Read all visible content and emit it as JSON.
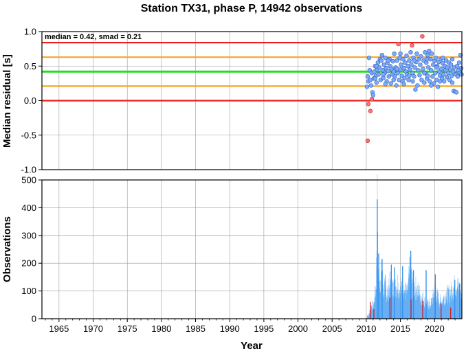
{
  "chart_data": [
    {
      "type": "scatter",
      "title": "Station TX31, phase P, 14942 observations",
      "ylabel": "Median residual [s]",
      "xlim": [
        1962.5,
        2024.0
      ],
      "ylim": [
        -1.0,
        1.0
      ],
      "yticks": [
        "1.0",
        "0.5",
        "0.0",
        "-0.5",
        "-1.0"
      ],
      "ytick_values": [
        1.0,
        0.5,
        0.0,
        -0.5,
        -1.0
      ],
      "grid": true,
      "annotation": "median = 0.42, smad = 0.21",
      "reference_lines": [
        {
          "y": 0.84,
          "color": "#ee1c1c"
        },
        {
          "y": 0.63,
          "color": "#f5a623"
        },
        {
          "y": 0.42,
          "color": "#22dd22"
        },
        {
          "y": 0.21,
          "color": "#f5a623"
        },
        {
          "y": 0.0,
          "color": "#ee1c1c"
        }
      ],
      "inlier_color": "#78aaff",
      "outlier_color": "#ff7070",
      "points": [
        [
          2010.2,
          -0.58,
          1
        ],
        [
          2010.3,
          -0.05,
          1
        ],
        [
          2010.6,
          -0.15,
          1
        ],
        [
          2010.8,
          0.02,
          1
        ],
        [
          2014.7,
          0.82,
          1
        ],
        [
          2016.7,
          0.8,
          1
        ],
        [
          2018.2,
          0.93,
          1
        ],
        [
          2010.1,
          0.2,
          0
        ],
        [
          2010.2,
          0.35,
          0
        ],
        [
          2010.3,
          0.28,
          0
        ],
        [
          2010.4,
          0.62,
          0
        ],
        [
          2010.5,
          0.44,
          0
        ],
        [
          2010.6,
          0.3,
          0
        ],
        [
          2010.7,
          0.22,
          0
        ],
        [
          2010.8,
          0.4,
          0
        ],
        [
          2010.9,
          0.12,
          0
        ],
        [
          2011.0,
          0.08,
          0
        ],
        [
          2011.1,
          0.32,
          0
        ],
        [
          2011.2,
          0.42,
          0
        ],
        [
          2011.3,
          0.5,
          0
        ],
        [
          2011.4,
          0.36,
          0
        ],
        [
          2011.5,
          0.26,
          0
        ],
        [
          2011.6,
          0.45,
          0
        ],
        [
          2011.7,
          0.55,
          0
        ],
        [
          2011.8,
          0.38,
          0
        ],
        [
          2011.9,
          0.48,
          0
        ],
        [
          2012.0,
          0.6,
          0
        ],
        [
          2012.1,
          0.3,
          0
        ],
        [
          2012.2,
          0.58,
          0
        ],
        [
          2012.3,
          0.66,
          0
        ],
        [
          2012.4,
          0.44,
          0
        ],
        [
          2012.5,
          0.33,
          0
        ],
        [
          2012.6,
          0.52,
          0
        ],
        [
          2012.7,
          0.4,
          0
        ],
        [
          2012.8,
          0.62,
          0
        ],
        [
          2012.9,
          0.47,
          0
        ],
        [
          2013.0,
          0.28,
          0
        ],
        [
          2013.1,
          0.55,
          0
        ],
        [
          2013.2,
          0.43,
          0
        ],
        [
          2013.3,
          0.35,
          0
        ],
        [
          2013.4,
          0.6,
          0
        ],
        [
          2013.5,
          0.5,
          0
        ],
        [
          2013.6,
          0.25,
          0
        ],
        [
          2013.7,
          0.46,
          0
        ],
        [
          2013.8,
          0.38,
          0
        ],
        [
          2013.9,
          0.57,
          0
        ],
        [
          2014.0,
          0.42,
          0
        ],
        [
          2014.1,
          0.68,
          0
        ],
        [
          2014.2,
          0.35,
          0
        ],
        [
          2014.3,
          0.48,
          0
        ],
        [
          2014.4,
          0.22,
          0
        ],
        [
          2014.5,
          0.58,
          0
        ],
        [
          2014.6,
          0.4,
          0
        ],
        [
          2014.8,
          0.3,
          0
        ],
        [
          2014.9,
          0.62,
          0
        ],
        [
          2015.0,
          0.45,
          0
        ],
        [
          2015.1,
          0.52,
          0
        ],
        [
          2015.2,
          0.36,
          0
        ],
        [
          2015.3,
          0.28,
          0
        ],
        [
          2015.4,
          0.6,
          0
        ],
        [
          2015.5,
          0.47,
          0
        ],
        [
          2015.6,
          0.33,
          0
        ],
        [
          2015.7,
          0.55,
          0
        ],
        [
          2015.8,
          0.42,
          0
        ],
        [
          2015.9,
          0.65,
          0
        ],
        [
          2016.0,
          0.38,
          0
        ],
        [
          2016.1,
          0.5,
          0
        ],
        [
          2016.2,
          0.3,
          0
        ],
        [
          2016.3,
          0.58,
          0
        ],
        [
          2016.4,
          0.45,
          0
        ],
        [
          2016.5,
          0.7,
          0
        ],
        [
          2016.6,
          0.52,
          0
        ],
        [
          2016.8,
          0.4,
          0
        ],
        [
          2016.9,
          0.62,
          0
        ],
        [
          2017.0,
          0.35,
          0
        ],
        [
          2017.1,
          0.48,
          0
        ],
        [
          2017.2,
          0.16,
          0
        ],
        [
          2017.3,
          0.56,
          0
        ],
        [
          2017.4,
          0.68,
          0
        ],
        [
          2017.5,
          0.22,
          0
        ],
        [
          2017.6,
          0.44,
          0
        ],
        [
          2017.7,
          0.6,
          0
        ],
        [
          2017.8,
          0.37,
          0
        ],
        [
          2017.9,
          0.52,
          0
        ],
        [
          2018.0,
          0.64,
          0
        ],
        [
          2018.1,
          0.3,
          0
        ],
        [
          2018.3,
          0.46,
          0
        ],
        [
          2018.4,
          0.58,
          0
        ],
        [
          2018.5,
          0.26,
          0
        ],
        [
          2018.6,
          0.7,
          0
        ],
        [
          2018.7,
          0.4,
          0
        ],
        [
          2018.8,
          0.55,
          0
        ],
        [
          2018.9,
          0.32,
          0
        ],
        [
          2019.0,
          0.66,
          0
        ],
        [
          2019.1,
          0.48,
          0
        ],
        [
          2019.2,
          0.72,
          0
        ],
        [
          2019.3,
          0.28,
          0
        ],
        [
          2019.4,
          0.6,
          0
        ],
        [
          2019.5,
          0.44,
          0
        ],
        [
          2019.6,
          0.68,
          0
        ],
        [
          2019.7,
          0.35,
          0
        ],
        [
          2019.8,
          0.52,
          0
        ],
        [
          2019.9,
          0.25,
          0
        ],
        [
          2020.0,
          0.58,
          0
        ],
        [
          2020.1,
          0.4,
          0
        ],
        [
          2020.2,
          0.62,
          0
        ],
        [
          2020.3,
          0.3,
          0
        ],
        [
          2020.4,
          0.5,
          0
        ],
        [
          2020.5,
          0.2,
          0
        ],
        [
          2020.6,
          0.56,
          0
        ],
        [
          2020.7,
          0.42,
          0
        ],
        [
          2020.8,
          0.36,
          0
        ],
        [
          2020.9,
          0.6,
          0
        ],
        [
          2021.0,
          0.46,
          0
        ],
        [
          2021.1,
          0.32,
          0
        ],
        [
          2021.2,
          0.54,
          0
        ],
        [
          2021.3,
          0.38,
          0
        ],
        [
          2021.4,
          0.28,
          0
        ],
        [
          2021.5,
          0.5,
          0
        ],
        [
          2021.6,
          0.44,
          0
        ],
        [
          2021.7,
          0.58,
          0
        ],
        [
          2021.8,
          0.34,
          0
        ],
        [
          2021.9,
          0.48,
          0
        ],
        [
          2022.0,
          0.4,
          0
        ],
        [
          2022.1,
          0.55,
          0
        ],
        [
          2022.2,
          0.3,
          0
        ],
        [
          2022.3,
          0.45,
          0
        ],
        [
          2022.4,
          0.52,
          0
        ],
        [
          2022.5,
          0.36,
          0
        ],
        [
          2022.6,
          0.6,
          0
        ],
        [
          2022.7,
          0.42,
          0
        ],
        [
          2022.8,
          0.14,
          0
        ],
        [
          2022.9,
          0.48,
          0
        ],
        [
          2023.0,
          0.13,
          0
        ],
        [
          2023.1,
          0.38,
          0
        ],
        [
          2023.2,
          0.12,
          0
        ],
        [
          2023.3,
          0.5,
          0
        ],
        [
          2023.4,
          0.35,
          0
        ],
        [
          2023.5,
          0.44,
          0
        ],
        [
          2023.6,
          0.55,
          0
        ],
        [
          2023.7,
          0.4,
          0
        ],
        [
          2023.8,
          0.66,
          0
        ],
        [
          2023.9,
          0.47,
          0
        ],
        [
          2023.95,
          0.38,
          0
        ],
        [
          2014.0,
          0.3,
          0
        ],
        [
          2015.5,
          0.24,
          0
        ],
        [
          2016.8,
          0.28,
          0
        ],
        [
          2018.5,
          0.4,
          0
        ],
        [
          2019.0,
          0.36,
          0
        ],
        [
          2012.5,
          0.38,
          0
        ],
        [
          2011.5,
          0.5,
          0
        ],
        [
          2013.2,
          0.58,
          0
        ],
        [
          2019.5,
          0.22,
          0
        ],
        [
          2020.8,
          0.28,
          0
        ],
        [
          2021.2,
          0.62,
          0
        ],
        [
          2022.6,
          0.26,
          0
        ],
        [
          2017.0,
          0.58,
          0
        ],
        [
          2015.0,
          0.68,
          0
        ],
        [
          2016.3,
          0.36,
          0
        ],
        [
          2014.5,
          0.46,
          0
        ],
        [
          2012.8,
          0.24,
          0
        ],
        [
          2011.3,
          0.32,
          0
        ],
        [
          2018.9,
          0.6,
          0
        ],
        [
          2020.3,
          0.48,
          0
        ]
      ]
    },
    {
      "type": "bar",
      "xlabel": "Year",
      "ylabel": "Observations",
      "xlim": [
        1962.5,
        2024.0
      ],
      "ylim": [
        0,
        500
      ],
      "yticks": [
        "500",
        "400",
        "300",
        "200",
        "100",
        "0"
      ],
      "ytick_values": [
        500,
        400,
        300,
        200,
        100,
        0
      ],
      "xticks": [
        "1965",
        "1970",
        "1975",
        "1980",
        "1985",
        "1990",
        "1995",
        "2000",
        "2005",
        "2010",
        "2015",
        "2020"
      ],
      "xtick_values": [
        1965,
        1970,
        1975,
        1980,
        1985,
        1990,
        1995,
        2000,
        2005,
        2010,
        2015,
        2020
      ],
      "grid": true,
      "bar_color": "#2b8ff0",
      "outlier_color": "#e01010",
      "anchors": [
        [
          2010.0,
          0
        ],
        [
          2010.1,
          15
        ],
        [
          2010.3,
          10
        ],
        [
          2010.5,
          30
        ],
        [
          2010.8,
          55
        ],
        [
          2011.0,
          45
        ],
        [
          2011.2,
          80
        ],
        [
          2011.4,
          130
        ],
        [
          2011.5,
          230
        ],
        [
          2011.6,
          430
        ],
        [
          2011.7,
          200
        ],
        [
          2011.9,
          150
        ],
        [
          2012.1,
          160
        ],
        [
          2012.3,
          170
        ],
        [
          2012.5,
          110
        ],
        [
          2012.8,
          130
        ],
        [
          2013.0,
          95
        ],
        [
          2013.3,
          120
        ],
        [
          2013.6,
          150
        ],
        [
          2014.0,
          110
        ],
        [
          2014.3,
          125
        ],
        [
          2014.6,
          140
        ],
        [
          2015.0,
          100
        ],
        [
          2015.3,
          150
        ],
        [
          2015.6,
          110
        ],
        [
          2016.0,
          95
        ],
        [
          2016.4,
          200
        ],
        [
          2016.8,
          130
        ],
        [
          2017.2,
          120
        ],
        [
          2017.6,
          105
        ],
        [
          2018.0,
          90
        ],
        [
          2018.5,
          70
        ],
        [
          2019.0,
          55
        ],
        [
          2019.5,
          60
        ],
        [
          2020.0,
          110
        ],
        [
          2020.5,
          80
        ],
        [
          2021.0,
          65
        ],
        [
          2021.5,
          90
        ],
        [
          2022.0,
          95
        ],
        [
          2022.5,
          110
        ],
        [
          2023.0,
          130
        ],
        [
          2023.5,
          120
        ],
        [
          2024.0,
          100
        ]
      ],
      "spikes": [
        [
          2011.55,
          430
        ],
        [
          2011.75,
          235
        ],
        [
          2012.25,
          215
        ],
        [
          2013.6,
          195
        ],
        [
          2014.05,
          185
        ],
        [
          2015.25,
          190
        ],
        [
          2016.45,
          245
        ],
        [
          2016.85,
          175
        ],
        [
          2018.7,
          175
        ],
        [
          2020.05,
          160
        ],
        [
          2022.9,
          140
        ],
        [
          2023.6,
          125
        ]
      ],
      "outlier_bars": [
        [
          2010.55,
          60
        ],
        [
          2011.05,
          35
        ],
        [
          2013.4,
          75
        ],
        [
          2016.5,
          70
        ],
        [
          2018.2,
          65
        ],
        [
          2020.9,
          55
        ],
        [
          2022.3,
          40
        ]
      ]
    }
  ]
}
